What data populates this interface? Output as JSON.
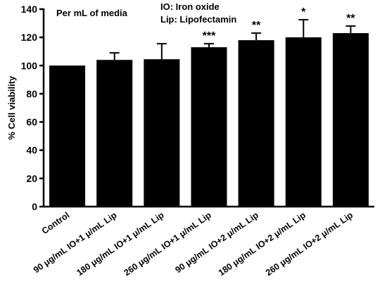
{
  "chart_data": {
    "type": "bar",
    "title": "",
    "xlabel": "",
    "ylabel": "% Cell viability",
    "ylim": [
      0,
      140
    ],
    "yticks": [
      0,
      20,
      40,
      60,
      80,
      100,
      120,
      140
    ],
    "grid": false,
    "categories": [
      "Control",
      "90 μg/mL IO+1 μ/mL Lip",
      "180 μg/mL IO+1 μ/mL Lip",
      "260 μg/mL IO+1 μ/mL Lip",
      "90 μg/mL IO+2 μ/mL Lip",
      "180 μg/mL IO+2 μ/mL Lip",
      "260 μg/mL IO+2 μ/mL Lip"
    ],
    "values": [
      100,
      104,
      104.5,
      113,
      118,
      120,
      123
    ],
    "errors": [
      0,
      5,
      11,
      2.5,
      5,
      12.5,
      5
    ],
    "significance": [
      "",
      "",
      "",
      "***",
      "**",
      "*",
      "**"
    ],
    "bar_color": "#000000",
    "annotations": [
      "Per mL of media",
      "IO: Iron oxide",
      "Lip: Lipofectamin"
    ]
  }
}
